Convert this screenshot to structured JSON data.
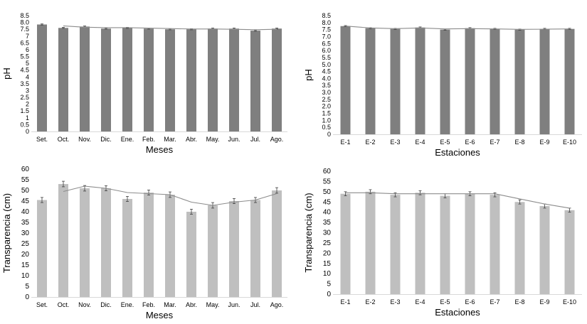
{
  "colors": {
    "dark_bar": "#7f7f7f",
    "light_bar": "#bfbfbf",
    "trend_line": "#8c8c8c",
    "axis": "#d9d9d9",
    "error_bar": "#404040",
    "text": "#000000"
  },
  "chart_data": [
    {
      "type": "bar",
      "panel": "top-left",
      "title": "",
      "xlabel": "Meses",
      "ylabel": "pH",
      "ylim": [
        0,
        8.5
      ],
      "yticks": [
        0,
        0.5,
        1,
        1.5,
        2,
        2.5,
        3,
        3.5,
        4,
        4.5,
        5,
        5.5,
        6,
        6.5,
        7,
        7.5,
        8,
        8.5
      ],
      "ytick_labels": [
        "0",
        "0.5",
        "1",
        "1.5",
        "2",
        "2.5",
        "3",
        "3.5",
        "4",
        "4.5",
        "5",
        "5.5",
        "6",
        "6.5",
        "7",
        "7.5",
        "8.0",
        "8.5"
      ],
      "categories": [
        "Set.",
        "Oct.",
        "Nov.",
        "Dic.",
        "Ene.",
        "Feb.",
        "Mar.",
        "Abr.",
        "May.",
        "Jun.",
        "Jul.",
        "Ago."
      ],
      "values": [
        7.85,
        7.6,
        7.7,
        7.55,
        7.6,
        7.55,
        7.5,
        7.5,
        7.55,
        7.55,
        7.4,
        7.55
      ],
      "errors": [
        0.04,
        0.04,
        0.04,
        0.04,
        0.04,
        0.04,
        0.04,
        0.04,
        0.04,
        0.04,
        0.04,
        0.04
      ],
      "trend": [
        null,
        7.75,
        7.65,
        7.62,
        7.62,
        7.58,
        7.55,
        7.52,
        7.52,
        7.5,
        7.47,
        7.5
      ],
      "bar_color": "#7f7f7f",
      "grid": false
    },
    {
      "type": "bar",
      "panel": "top-right",
      "title": "",
      "xlabel": "Estaciones",
      "ylabel": "pH",
      "ylim": [
        0,
        8.5
      ],
      "yticks": [
        0,
        0.5,
        1,
        1.5,
        2,
        2.5,
        3,
        3.5,
        4,
        4.5,
        5,
        5.5,
        6,
        6.5,
        7,
        7.5,
        8,
        8.5
      ],
      "ytick_labels": [
        "0",
        "0.5",
        "1.0",
        "1.5",
        "2.0",
        "2.5",
        "3.0",
        "3.5",
        "4.0",
        "4.5",
        "5.0",
        "5.5",
        "6.0",
        "6.5",
        "7.0",
        "7.5",
        "8.0",
        "8.5"
      ],
      "categories": [
        "E-1",
        "E-2",
        "E-3",
        "E-4",
        "E-5",
        "E-6",
        "E-7",
        "E-8",
        "E-9",
        "E-10"
      ],
      "values": [
        7.75,
        7.6,
        7.55,
        7.65,
        7.5,
        7.6,
        7.55,
        7.5,
        7.55,
        7.55
      ],
      "errors": [
        0.04,
        0.04,
        0.04,
        0.04,
        0.04,
        0.04,
        0.04,
        0.04,
        0.04,
        0.04
      ],
      "trend": [
        7.75,
        7.62,
        7.57,
        7.62,
        7.55,
        7.57,
        7.55,
        7.52,
        7.53,
        7.55
      ],
      "bar_color": "#7f7f7f",
      "grid": false
    },
    {
      "type": "bar",
      "panel": "bottom-left",
      "title": "",
      "xlabel": "Meses",
      "ylabel": "Transparencia (cm)",
      "ylim": [
        0,
        60
      ],
      "yticks": [
        0,
        5,
        10,
        15,
        20,
        25,
        30,
        35,
        40,
        45,
        50,
        55,
        60
      ],
      "ytick_labels": [
        "0",
        "5",
        "10",
        "15",
        "20",
        "25",
        "30",
        "35",
        "40",
        "45",
        "50",
        "55",
        "60"
      ],
      "categories": [
        "Set.",
        "Oct.",
        "Nov.",
        "Dic.",
        "Ene.",
        "Feb.",
        "Mar.",
        "Abr.",
        "May.",
        "Jun.",
        "Jul.",
        "Ago."
      ],
      "values": [
        45.5,
        53,
        51,
        51,
        46,
        49,
        48,
        40,
        43,
        45,
        45.5,
        50
      ],
      "errors": [
        1.2,
        1.3,
        1.3,
        1.2,
        1.2,
        1.2,
        1.3,
        1.2,
        1.3,
        1.2,
        1.2,
        1.3
      ],
      "trend": [
        null,
        49.5,
        52,
        51,
        49,
        48.5,
        48,
        44.5,
        43,
        44.5,
        45.5,
        48.5
      ],
      "bar_color": "#bfbfbf",
      "grid": false
    },
    {
      "type": "bar",
      "panel": "bottom-right",
      "title": "",
      "xlabel": "Estaciones",
      "ylabel": "Transparencia (cm)",
      "ylim": [
        0,
        60
      ],
      "yticks": [
        0,
        5,
        10,
        15,
        20,
        25,
        30,
        35,
        40,
        45,
        50,
        55,
        60
      ],
      "ytick_labels": [
        "0",
        "5",
        "10",
        "15",
        "20",
        "25",
        "30",
        "35",
        "40",
        "45",
        "50",
        "55",
        "60"
      ],
      "categories": [
        "E-1",
        "E-2",
        "E-3",
        "E-4",
        "E-5",
        "E-6",
        "E-7",
        "E-8",
        "E-9",
        "E-10"
      ],
      "values": [
        49,
        50,
        48.5,
        49.5,
        48,
        49,
        48.5,
        45,
        43,
        41
      ],
      "errors": [
        1.0,
        1.0,
        1.0,
        1.0,
        1.0,
        1.0,
        1.0,
        1.0,
        1.0,
        1.0
      ],
      "trend": [
        49.5,
        49.5,
        49,
        49,
        49,
        49,
        49,
        46.5,
        44,
        42
      ],
      "bar_color": "#bfbfbf",
      "grid": false
    }
  ]
}
